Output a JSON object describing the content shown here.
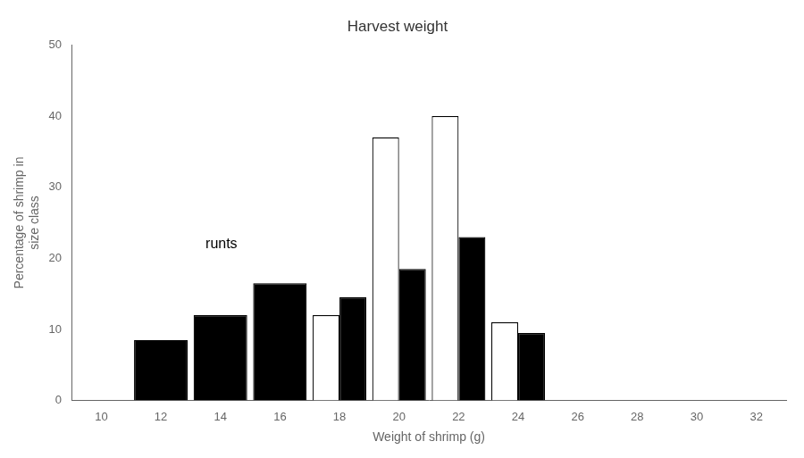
{
  "chart_data": {
    "type": "bar",
    "title": "Harvest weight",
    "xlabel": "Weight of shrimp (g)",
    "ylabel": "Percentage of shrimp in\nsize class",
    "x": [
      12,
      14,
      16,
      18,
      20,
      22,
      24
    ],
    "series": [
      {
        "color": "#ffffff",
        "values": [
          null,
          null,
          null,
          12.0,
          37.0,
          40.0,
          11.0
        ]
      },
      {
        "color": "#000000",
        "values": [
          8.5,
          12.0,
          16.5,
          14.5,
          18.5,
          23.0,
          9.5
        ]
      }
    ],
    "xlim": [
      10,
      32
    ],
    "ylim": [
      0,
      50
    ],
    "xticks": [
      10,
      12,
      14,
      16,
      18,
      20,
      22,
      24,
      26,
      28,
      30,
      32
    ],
    "yticks": [
      0,
      10,
      20,
      30,
      40,
      50
    ],
    "annotations": [
      {
        "text": "runts",
        "x": 13.5,
        "y": 22
      }
    ],
    "grid": false
  }
}
